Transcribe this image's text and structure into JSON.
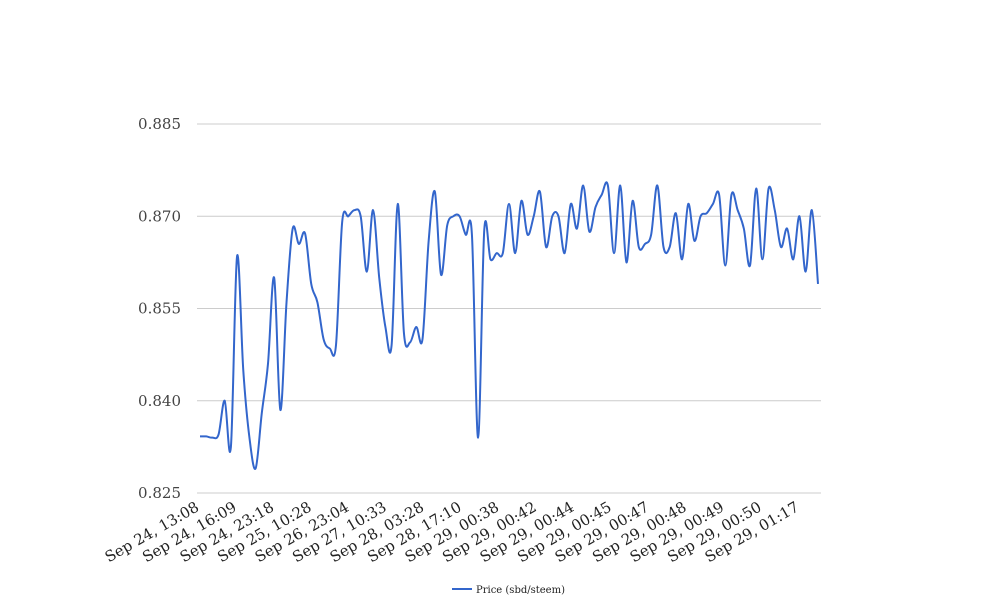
{
  "chart_data": {
    "type": "line",
    "title": "",
    "xlabel": "",
    "ylabel": "",
    "ylim": [
      0.825,
      0.885
    ],
    "yticks": [
      "0.825",
      "0.840",
      "0.855",
      "0.870",
      "0.885"
    ],
    "xticks": [
      "Sep 24, 13:08",
      "Sep 24, 16:09",
      "Sep 24, 23:18",
      "Sep 25, 10:28",
      "Sep 26, 23:04",
      "Sep 27, 10:33",
      "Sep 28, 03:28",
      "Sep 28, 17:10",
      "Sep 29, 00:38",
      "Sep 29, 00:42",
      "Sep 29, 00:44",
      "Sep 29, 00:45",
      "Sep 29, 00:47",
      "Sep 29, 00:48",
      "Sep 29, 00:49",
      "Sep 29, 00:50",
      "Sep 29, 01:17"
    ],
    "grid": true,
    "legend_position": "bottom-center",
    "series": [
      {
        "name": "Price (sbd/steem)",
        "color": "#3366cc",
        "values": [
          0.8342,
          0.8342,
          0.834,
          0.8345,
          0.84,
          0.8325,
          0.8635,
          0.845,
          0.834,
          0.829,
          0.838,
          0.846,
          0.86,
          0.8385,
          0.856,
          0.868,
          0.8655,
          0.8672,
          0.859,
          0.856,
          0.85,
          0.8485,
          0.849,
          0.869,
          0.87,
          0.871,
          0.87,
          0.861,
          0.871,
          0.86,
          0.852,
          0.849,
          0.872,
          0.851,
          0.8495,
          0.852,
          0.85,
          0.866,
          0.874,
          0.8605,
          0.8685,
          0.87,
          0.87,
          0.867,
          0.867,
          0.834,
          0.8678,
          0.863,
          0.864,
          0.864,
          0.872,
          0.864,
          0.8725,
          0.867,
          0.87,
          0.874,
          0.865,
          0.87,
          0.87,
          0.864,
          0.872,
          0.868,
          0.875,
          0.8675,
          0.8715,
          0.8735,
          0.875,
          0.864,
          0.875,
          0.8625,
          0.8725,
          0.865,
          0.8655,
          0.867,
          0.875,
          0.865,
          0.865,
          0.8705,
          0.863,
          0.872,
          0.866,
          0.87,
          0.8705,
          0.872,
          0.8735,
          0.862,
          0.8735,
          0.871,
          0.868,
          0.862,
          0.8745,
          0.863,
          0.8745,
          0.871,
          0.865,
          0.868,
          0.863,
          0.87,
          0.861,
          0.871,
          0.859
        ]
      }
    ]
  }
}
